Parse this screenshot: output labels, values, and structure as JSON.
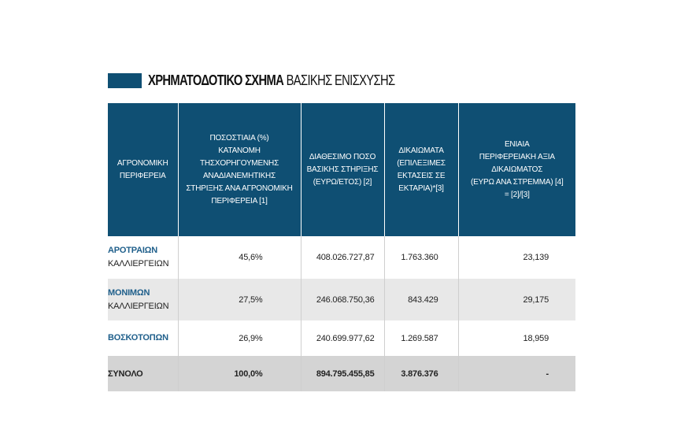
{
  "title": {
    "bold": "ΧΡΗΜΑΤΟΔΟΤΙΚΟ ΣΧΗΜΑ",
    "regular": "ΒΑΣΙΚΗΣ ΕΝΙΣΧΥΣΗΣ",
    "accent_color": "#0f4f73"
  },
  "table": {
    "headers": [
      "ΑΓΡΟΝΟΜΙΚΗ\nΠΕΡΙΦΕΡΕΙΑ",
      "ΠΟΣΟΣΤΙΑΙΑ (%)\nΚΑΤΑΝΟΜΗ\nΤΗΣΧΟΡΗΓΟΥΜΕΝΗΣ\nΑΝΑΔΙΑΝΕΜΗΤΙΚΗΣ\nΣΤΗΡΙΞΗΣ ΑΝΑ ΑΓΡΟΝΟΜΙΚΗ\nΠΕΡΙΦΕΡΕΙΑ [1]",
      "ΔΙΑΘΕΣΙΜΟ ΠΟΣΟ\nΒΑΣΙΚΗΣ ΣΤΗΡΙΞΗΣ\n(ΕΥΡΩ/ΕΤΟΣ) [2]",
      "ΔΙΚΑΙΩΜΑΤΑ\n(ΕΠΙΛΕΞΙΜΕΣ\nΕΚΤΑΣΕΙΣ ΣΕ\nΕΚΤΑΡΙΑ)*[3]",
      "ΕΝΙΑΙΑ\nΠΕΡΙΦΕΡΕΙΑΚΗ ΑΞΙΑ\nΔΙΚΑΙΩΜΑΤΟΣ\n(ΕΥΡΩ ΑΝΑ ΣΤΡΕΜΜΑ) [4]\n= [2]/[3]"
    ],
    "rows": [
      {
        "name": "ΑΡΟΤΡΑΙΩΝ",
        "name2": "ΚΑΛΛΙΕΡΓΕΙΩΝ",
        "pct": "45,6%",
        "amount": "408.026.727,87",
        "rights": "1.763.360",
        "value": "23,139"
      },
      {
        "name": "ΜΟΝΙΜΩΝ",
        "name2": "ΚΑΛΛΙΕΡΓΕΙΩΝ",
        "pct": "27,5%",
        "amount": "246.068.750,36",
        "rights": "843.429",
        "value": "29,175"
      },
      {
        "name": "ΒΟΣΚΟΤΟΠΩΝ",
        "name2": "",
        "pct": "26,9%",
        "amount": "240.699.977,62",
        "rights": "1.269.587",
        "value": "18,959"
      }
    ],
    "total": {
      "name": "ΣΥΝΟΛΟ",
      "pct": "100,0%",
      "amount": "894.795.455,85",
      "rights": "3.876.376",
      "value": "-"
    }
  }
}
